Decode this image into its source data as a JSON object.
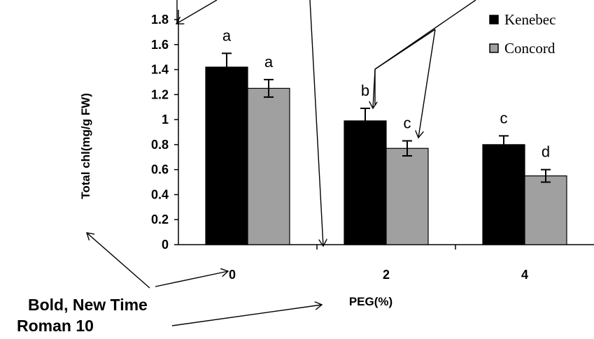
{
  "chart_data": {
    "type": "bar",
    "title": "",
    "xlabel": "PEG(%)",
    "ylabel": "Total chl(mg/g FW)",
    "categories": [
      "0",
      "2",
      "4"
    ],
    "ylim": [
      0,
      1.8
    ],
    "yticks": [
      "0",
      "0.2",
      "0.4",
      "0.6",
      "0.8",
      "1",
      "1.2",
      "1.4",
      "1.6",
      "1.8"
    ],
    "grid": false,
    "legend_position": "top-right",
    "series": [
      {
        "name": "Kenebec",
        "color": "#000000",
        "values": [
          1.42,
          0.99,
          0.8
        ],
        "errors": [
          0.11,
          0.1,
          0.07
        ],
        "letters": [
          "a",
          "b",
          "c"
        ]
      },
      {
        "name": "Concord",
        "color": "#a0a0a0",
        "values": [
          1.25,
          0.77,
          0.55
        ],
        "errors": [
          0.07,
          0.06,
          0.05
        ],
        "letters": [
          "a",
          "c",
          "d"
        ]
      }
    ],
    "annotations": [
      "Bold, New Time",
      "Roman 10"
    ]
  }
}
